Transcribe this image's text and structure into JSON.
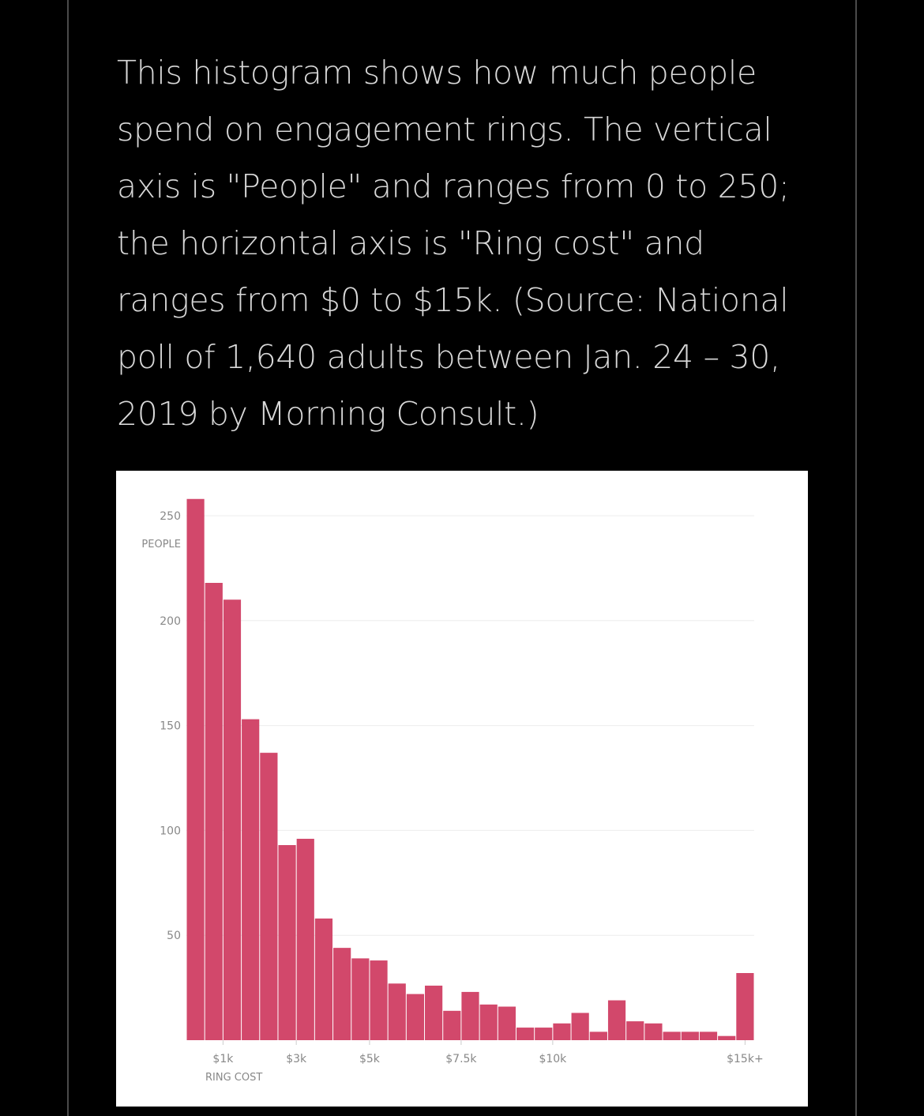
{
  "caption": "This histogram shows how much people spend on engagement rings. The vertical axis is \"People\" and ranges from 0 to 250; the horizontal axis is \"Ring cost\" and ranges from $0 to $15k. (Source: National poll of 1,640 adults between Jan. 24 – 30, 2019 by Morning Consult.)",
  "colors": {
    "background": "#000000",
    "bar": "#d2486b",
    "gridline": "#e5e5e5",
    "text": "#d8d8d8"
  },
  "chart_data": {
    "type": "bar",
    "title": "",
    "xlabel": "RING COST",
    "ylabel": "PEOPLE",
    "ylim": [
      0,
      250
    ],
    "y_ticks": [
      50,
      100,
      150,
      200,
      250
    ],
    "x_ticks": [
      {
        "label": "$1k",
        "value": 1000
      },
      {
        "label": "$3k",
        "value": 3000
      },
      {
        "label": "$5k",
        "value": 5000
      },
      {
        "label": "$7.5k",
        "value": 7500
      },
      {
        "label": "$10k",
        "value": 10000
      },
      {
        "label": "$15k+",
        "value": 15000
      }
    ],
    "bin_width": 500,
    "bin_starts": [
      0,
      500,
      1000,
      1500,
      2000,
      2500,
      3000,
      3500,
      4000,
      4500,
      5000,
      5500,
      6000,
      6500,
      7000,
      7500,
      8000,
      8500,
      9000,
      9500,
      10000,
      10500,
      11000,
      11500,
      12000,
      12500,
      13000,
      13500,
      14000,
      14500,
      15000
    ],
    "values": [
      258,
      218,
      210,
      153,
      137,
      93,
      96,
      58,
      44,
      39,
      38,
      27,
      22,
      26,
      14,
      23,
      17,
      16,
      6,
      6,
      8,
      13,
      4,
      19,
      9,
      8,
      4,
      4,
      4,
      2,
      32
    ],
    "grid": true,
    "legend": "none"
  }
}
